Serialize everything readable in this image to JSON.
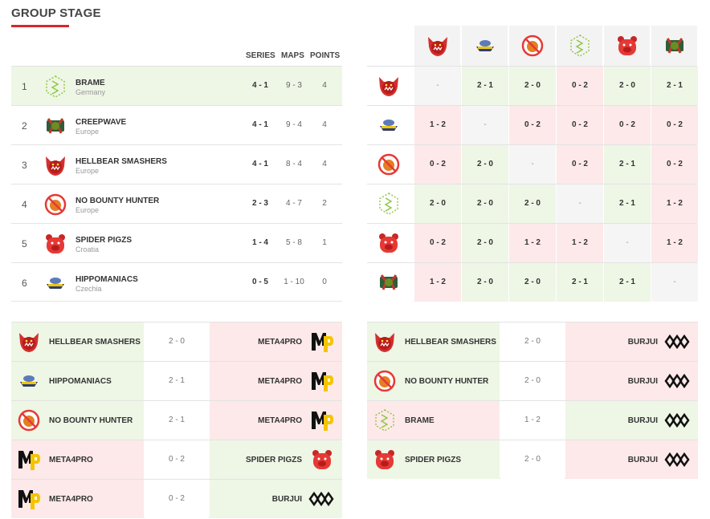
{
  "page": {
    "title": "GROUP STAGE"
  },
  "colors": {
    "accent": "#d7262b",
    "win_bg": "#eef6e6",
    "loss_bg": "#fde9ea",
    "leader_bg": "#eef6e6"
  },
  "standings": {
    "headers": {
      "series": "SERIES",
      "maps": "MAPS",
      "points": "POINTS"
    },
    "rows": [
      {
        "rank": "1",
        "team": "BRAME",
        "country": "Germany",
        "logo": "brame-logo",
        "series": "4 - 1",
        "maps": "9 - 3",
        "points": "4"
      },
      {
        "rank": "2",
        "team": "CREEPWAVE",
        "country": "Europe",
        "logo": "creepwave-logo",
        "series": "4 - 1",
        "maps": "9 - 4",
        "points": "4"
      },
      {
        "rank": "3",
        "team": "HELLBEAR SMASHERS",
        "country": "Europe",
        "logo": "hellbear-logo",
        "series": "4 - 1",
        "maps": "8 - 4",
        "points": "4"
      },
      {
        "rank": "4",
        "team": "NO BOUNTY HUNTER",
        "country": "Europe",
        "logo": "nobounty-logo",
        "series": "2 - 3",
        "maps": "4 - 7",
        "points": "2"
      },
      {
        "rank": "5",
        "team": "SPIDER PIGZS",
        "country": "Croatia",
        "logo": "spiderpigzs-logo",
        "series": "1 - 4",
        "maps": "5 - 8",
        "points": "1"
      },
      {
        "rank": "6",
        "team": "HIPPOMANIACS",
        "country": "Czechia",
        "logo": "hippomaniacs-logo",
        "series": "0 - 5",
        "maps": "1 - 10",
        "points": "0"
      }
    ]
  },
  "matrix": {
    "teams": [
      "hellbear-logo",
      "hippomaniacs-logo",
      "nobounty-logo",
      "brame-logo",
      "spiderpigzs-logo",
      "creepwave-logo"
    ],
    "rows": [
      {
        "cells": [
          {
            "v": "-",
            "s": "self"
          },
          {
            "v": "2 - 1",
            "s": "win"
          },
          {
            "v": "2 - 0",
            "s": "win"
          },
          {
            "v": "0 - 2",
            "s": "loss"
          },
          {
            "v": "2 - 0",
            "s": "win"
          },
          {
            "v": "2 - 1",
            "s": "win"
          }
        ]
      },
      {
        "cells": [
          {
            "v": "1 - 2",
            "s": "loss"
          },
          {
            "v": "-",
            "s": "self"
          },
          {
            "v": "0 - 2",
            "s": "loss"
          },
          {
            "v": "0 - 2",
            "s": "loss"
          },
          {
            "v": "0 - 2",
            "s": "loss"
          },
          {
            "v": "0 - 2",
            "s": "loss"
          }
        ]
      },
      {
        "cells": [
          {
            "v": "0 - 2",
            "s": "loss"
          },
          {
            "v": "2 - 0",
            "s": "win"
          },
          {
            "v": "-",
            "s": "self"
          },
          {
            "v": "0 - 2",
            "s": "loss"
          },
          {
            "v": "2 - 1",
            "s": "win"
          },
          {
            "v": "0 - 2",
            "s": "loss"
          }
        ]
      },
      {
        "cells": [
          {
            "v": "2 - 0",
            "s": "win"
          },
          {
            "v": "2 - 0",
            "s": "win"
          },
          {
            "v": "2 - 0",
            "s": "win"
          },
          {
            "v": "-",
            "s": "self"
          },
          {
            "v": "2 - 1",
            "s": "win"
          },
          {
            "v": "1 - 2",
            "s": "loss"
          }
        ]
      },
      {
        "cells": [
          {
            "v": "0 - 2",
            "s": "loss"
          },
          {
            "v": "2 - 0",
            "s": "win"
          },
          {
            "v": "1 - 2",
            "s": "loss"
          },
          {
            "v": "1 - 2",
            "s": "loss"
          },
          {
            "v": "-",
            "s": "self"
          },
          {
            "v": "1 - 2",
            "s": "loss"
          }
        ]
      },
      {
        "cells": [
          {
            "v": "1 - 2",
            "s": "loss"
          },
          {
            "v": "2 - 0",
            "s": "win"
          },
          {
            "v": "2 - 0",
            "s": "win"
          },
          {
            "v": "2 - 1",
            "s": "win"
          },
          {
            "v": "2 - 1",
            "s": "win"
          },
          {
            "v": "-",
            "s": "self"
          }
        ]
      }
    ]
  },
  "matches_left": [
    {
      "left": "HELLBEAR SMASHERS",
      "left_logo": "hellbear-logo",
      "left_result": "win",
      "score": "2 - 0",
      "right": "META4PRO",
      "right_logo": "meta4pro-logo",
      "right_result": "loss"
    },
    {
      "left": "HIPPOMANIACS",
      "left_logo": "hippomaniacs-logo",
      "left_result": "win",
      "score": "2 - 1",
      "right": "META4PRO",
      "right_logo": "meta4pro-logo",
      "right_result": "loss"
    },
    {
      "left": "NO BOUNTY HUNTER",
      "left_logo": "nobounty-logo",
      "left_result": "win",
      "score": "2 - 1",
      "right": "META4PRO",
      "right_logo": "meta4pro-logo",
      "right_result": "loss"
    },
    {
      "left": "META4PRO",
      "left_logo": "meta4pro-logo",
      "left_result": "loss",
      "score": "0 - 2",
      "right": "SPIDER PIGZS",
      "right_logo": "spiderpigzs-logo",
      "right_result": "win"
    },
    {
      "left": "META4PRO",
      "left_logo": "meta4pro-logo",
      "left_result": "loss",
      "score": "0 - 2",
      "right": "BURJUI",
      "right_logo": "burjui-logo",
      "right_result": "win"
    }
  ],
  "matches_right": [
    {
      "left": "HELLBEAR SMASHERS",
      "left_logo": "hellbear-logo",
      "left_result": "win",
      "score": "2 - 0",
      "right": "BURJUI",
      "right_logo": "burjui-logo",
      "right_result": "loss"
    },
    {
      "left": "NO BOUNTY HUNTER",
      "left_logo": "nobounty-logo",
      "left_result": "win",
      "score": "2 - 0",
      "right": "BURJUI",
      "right_logo": "burjui-logo",
      "right_result": "loss"
    },
    {
      "left": "BRAME",
      "left_logo": "brame-logo",
      "left_result": "loss",
      "score": "1 - 2",
      "right": "BURJUI",
      "right_logo": "burjui-logo",
      "right_result": "win"
    },
    {
      "left": "SPIDER PIGZS",
      "left_logo": "spiderpigzs-logo",
      "left_result": "win",
      "score": "2 - 0",
      "right": "BURJUI",
      "right_logo": "burjui-logo",
      "right_result": "loss"
    }
  ]
}
